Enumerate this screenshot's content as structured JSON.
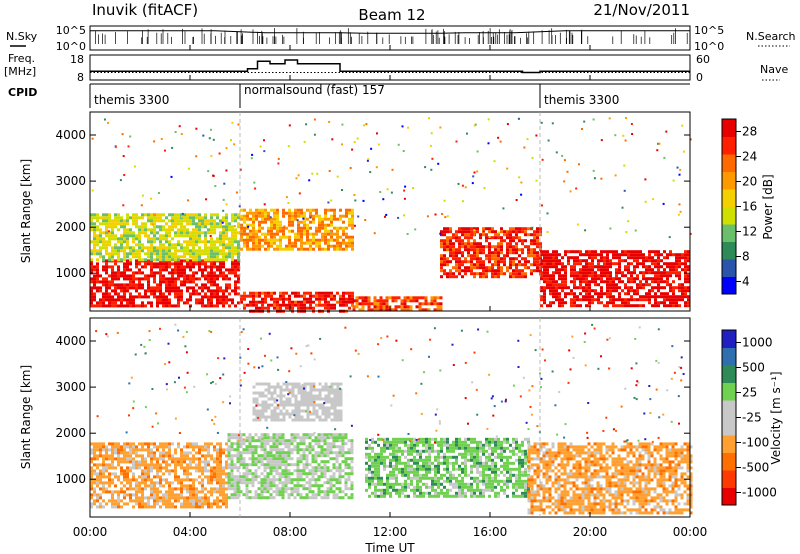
{
  "header": {
    "station": "Inuvik (fitACF)",
    "beam": "Beam 12",
    "date": "21/Nov/2011"
  },
  "left_labels": {
    "nsky": "N.Sky",
    "freq": "Freq.",
    "freq_unit": "[MHz]",
    "cpid": "CPID"
  },
  "right_labels": {
    "nsearch": "N.Search",
    "nave": "Nave"
  },
  "noise_panel": {
    "left_ticks": [
      "10^5",
      "10^0"
    ],
    "right_ticks": [
      "10^5",
      "10^0"
    ]
  },
  "freq_panel": {
    "left_ticks": [
      "18",
      "8"
    ],
    "right_ticks": [
      "60",
      "0"
    ]
  },
  "cpid_panel": {
    "segments": [
      {
        "label": "themis 3300",
        "start_hour": 0,
        "end_hour": 6
      },
      {
        "label": "normalsound (fast) 157",
        "start_hour": 6,
        "end_hour": 18
      },
      {
        "label": "themis 3300",
        "start_hour": 18,
        "end_hour": 24
      }
    ]
  },
  "power_panel": {
    "ylabel": "Slant Range [km]",
    "colorbar_label": "Power [dB]",
    "colorbar_ticks": [
      "28",
      "24",
      "20",
      "16",
      "12",
      "8",
      "4"
    ]
  },
  "velocity_panel": {
    "ylabel": "Slant Range [km]",
    "colorbar_label": "Velocity [m s⁻¹]",
    "colorbar_ticks": [
      "1000",
      "500",
      "25",
      "-25",
      "-100",
      "-500",
      "-1000"
    ]
  },
  "xaxis": {
    "label": "Time UT",
    "ticks": [
      "00:00",
      "04:00",
      "08:00",
      "12:00",
      "16:00",
      "20:00",
      "00:00"
    ]
  },
  "chart_data": [
    {
      "type": "line",
      "name": "noise",
      "x_range_hours": [
        0,
        24
      ],
      "x": [
        0,
        1,
        2,
        3,
        4,
        5,
        6,
        7,
        8,
        9,
        10,
        11,
        12,
        13,
        14,
        15,
        16,
        17,
        18,
        19,
        20,
        21,
        22,
        23,
        24
      ],
      "series": [
        {
          "name": "N.Sky",
          "values": [
            4.0,
            4.0,
            4.0,
            4.0,
            4.0,
            4.0,
            3.8,
            3.6,
            3.6,
            3.6,
            3.6,
            3.5,
            3.5,
            3.5,
            3.5,
            3.6,
            3.6,
            3.6,
            3.8,
            4.0,
            4.0,
            4.0,
            4.0,
            4.0,
            4.0
          ]
        }
      ]
    },
    {
      "type": "line",
      "name": "frequency",
      "x": [
        0,
        2,
        4,
        5.8,
        6.3,
        6.7,
        7.2,
        7.8,
        8.3,
        9.0,
        10.0,
        12.0,
        14.0,
        16.0,
        17.3,
        18.0,
        20.0,
        24.0
      ],
      "series": [
        {
          "name": "Freq. [MHz]",
          "values": [
            11.5,
            11.5,
            11.5,
            11.5,
            12.5,
            15.5,
            14.5,
            16.0,
            14.5,
            14.5,
            11.5,
            11.5,
            11.5,
            11.5,
            11.0,
            11.5,
            11.5,
            11.5
          ]
        }
      ],
      "ylim": [
        8,
        18
      ]
    },
    {
      "type": "heatmap",
      "name": "power",
      "xlim": [
        0,
        24
      ],
      "ylim": [
        180,
        4500
      ],
      "yticks": [
        1000,
        2000,
        3000,
        4000
      ],
      "colorbar_range": [
        0,
        30
      ],
      "bands": [
        {
          "t0": 0.0,
          "t1": 6.0,
          "r0": 300,
          "r1": 1300,
          "value": 28
        },
        {
          "t0": 0.0,
          "t1": 6.0,
          "r0": 1300,
          "r1": 2300,
          "value": 14
        },
        {
          "t0": 6.0,
          "t1": 10.5,
          "r0": 200,
          "r1": 600,
          "value": 27
        },
        {
          "t0": 6.0,
          "t1": 10.5,
          "r0": 1500,
          "r1": 2400,
          "value": 20
        },
        {
          "t0": 10.5,
          "t1": 14.0,
          "r0": 200,
          "r1": 500,
          "value": 24
        },
        {
          "t0": 14.0,
          "t1": 18.0,
          "r0": 900,
          "r1": 2000,
          "value": 26
        },
        {
          "t0": 18.0,
          "t1": 24.0,
          "r0": 300,
          "r1": 1500,
          "value": 29
        }
      ]
    },
    {
      "type": "heatmap",
      "name": "velocity",
      "xlim": [
        0,
        24
      ],
      "ylim": [
        180,
        4500
      ],
      "yticks": [
        1000,
        2000,
        3000,
        4000
      ],
      "colorbar_range": [
        -1000,
        1000
      ],
      "bands": [
        {
          "t0": 0.0,
          "t1": 5.5,
          "r0": 400,
          "r1": 1800,
          "value": -300
        },
        {
          "t0": 5.5,
          "t1": 10.5,
          "r0": 600,
          "r1": 2000,
          "value": 200
        },
        {
          "t0": 6.5,
          "t1": 10.0,
          "r0": 2300,
          "r1": 3100,
          "value": 0
        },
        {
          "t0": 11.0,
          "t1": 17.5,
          "r0": 600,
          "r1": 1900,
          "value": 300
        },
        {
          "t0": 17.5,
          "t1": 24.0,
          "r0": 300,
          "r1": 1800,
          "value": -300
        }
      ]
    }
  ]
}
